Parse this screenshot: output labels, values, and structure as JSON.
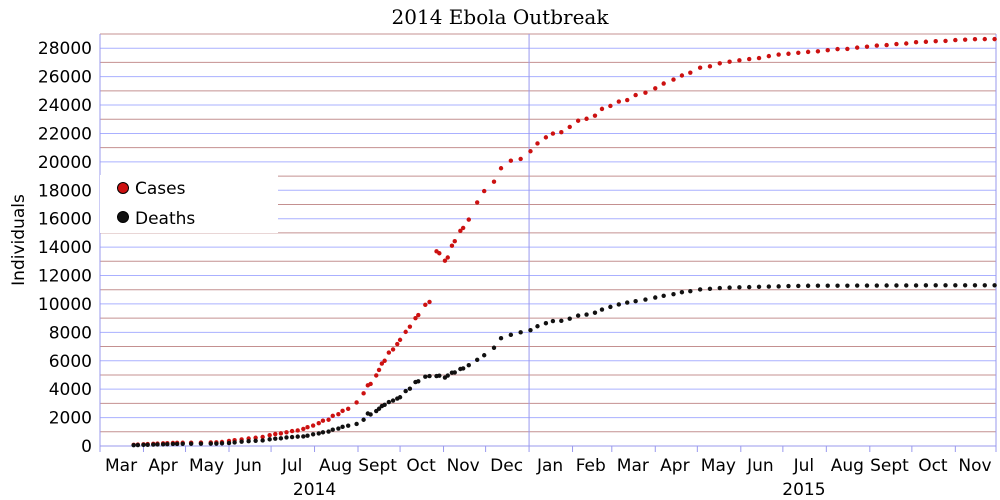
{
  "chart_data": {
    "type": "scatter",
    "title": "2014 Ebola Outbreak",
    "xlabel": "",
    "ylabel": "Individuals",
    "ylim": [
      0,
      29000
    ],
    "xlim": [
      "2014-03-01",
      "2015-11-30"
    ],
    "y_ticks": [
      0,
      2000,
      4000,
      6000,
      8000,
      10000,
      12000,
      14000,
      16000,
      18000,
      20000,
      22000,
      24000,
      26000,
      28000
    ],
    "x_month_labels": [
      {
        "label": "Mar",
        "date": "2014-03-16"
      },
      {
        "label": "Apr",
        "date": "2014-04-15"
      },
      {
        "label": "May",
        "date": "2014-05-16"
      },
      {
        "label": "Jun",
        "date": "2014-06-15"
      },
      {
        "label": "Jul",
        "date": "2014-07-16"
      },
      {
        "label": "Aug",
        "date": "2014-08-16"
      },
      {
        "label": "Sept",
        "date": "2014-09-15"
      },
      {
        "label": "Oct",
        "date": "2014-10-16"
      },
      {
        "label": "Nov",
        "date": "2014-11-15"
      },
      {
        "label": "Dec",
        "date": "2014-12-16"
      },
      {
        "label": "Jan",
        "date": "2015-01-16"
      },
      {
        "label": "Feb",
        "date": "2015-02-14"
      },
      {
        "label": "Mar",
        "date": "2015-03-16"
      },
      {
        "label": "Apr",
        "date": "2015-04-15"
      },
      {
        "label": "May",
        "date": "2015-05-16"
      },
      {
        "label": "Jun",
        "date": "2015-06-15"
      },
      {
        "label": "Jul",
        "date": "2015-07-16"
      },
      {
        "label": "Aug",
        "date": "2015-08-16"
      },
      {
        "label": "Sept",
        "date": "2015-09-15"
      },
      {
        "label": "Oct",
        "date": "2015-10-16"
      },
      {
        "label": "Nov",
        "date": "2015-11-15"
      }
    ],
    "x_month_boundaries": [
      "2014-03-01",
      "2014-04-01",
      "2014-05-01",
      "2014-06-01",
      "2014-07-01",
      "2014-08-01",
      "2014-09-01",
      "2014-10-01",
      "2014-11-01",
      "2014-12-01",
      "2015-01-01",
      "2015-02-01",
      "2015-03-01",
      "2015-04-01",
      "2015-05-01",
      "2015-06-01",
      "2015-07-01",
      "2015-08-01",
      "2015-09-01",
      "2015-10-01",
      "2015-11-01",
      "2015-11-30"
    ],
    "year_labels": [
      {
        "label": "2014",
        "date": "2014-08-01"
      },
      {
        "label": "2015",
        "date": "2015-07-16"
      }
    ],
    "year_divider": "2015-01-01",
    "grid": true,
    "legend_position": "left",
    "series": [
      {
        "name": "Cases",
        "color": "#cc1111",
        "points": [
          [
            "2014-03-25",
            86
          ],
          [
            "2014-03-28",
            103
          ],
          [
            "2014-04-01",
            122
          ],
          [
            "2014-04-04",
            137
          ],
          [
            "2014-04-08",
            157
          ],
          [
            "2014-04-11",
            167
          ],
          [
            "2014-04-15",
            186
          ],
          [
            "2014-04-18",
            200
          ],
          [
            "2014-04-22",
            213
          ],
          [
            "2014-04-25",
            222
          ],
          [
            "2014-04-29",
            229
          ],
          [
            "2014-05-05",
            235
          ],
          [
            "2014-05-12",
            240
          ],
          [
            "2014-05-19",
            248
          ],
          [
            "2014-05-23",
            258
          ],
          [
            "2014-05-27",
            281
          ],
          [
            "2014-06-01",
            354
          ],
          [
            "2014-06-05",
            412
          ],
          [
            "2014-06-10",
            461
          ],
          [
            "2014-06-15",
            528
          ],
          [
            "2014-06-20",
            581
          ],
          [
            "2014-06-25",
            635
          ],
          [
            "2014-06-30",
            759
          ],
          [
            "2014-07-04",
            844
          ],
          [
            "2014-07-08",
            888
          ],
          [
            "2014-07-12",
            964
          ],
          [
            "2014-07-16",
            1048
          ],
          [
            "2014-07-20",
            1093
          ],
          [
            "2014-07-24",
            1201
          ],
          [
            "2014-07-27",
            1323
          ],
          [
            "2014-07-31",
            1440
          ],
          [
            "2014-08-04",
            1603
          ],
          [
            "2014-08-07",
            1779
          ],
          [
            "2014-08-11",
            1848
          ],
          [
            "2014-08-14",
            2127
          ],
          [
            "2014-08-18",
            2240
          ],
          [
            "2014-08-21",
            2473
          ],
          [
            "2014-08-25",
            2615
          ],
          [
            "2014-08-31",
            3069
          ],
          [
            "2014-09-05",
            3707
          ],
          [
            "2014-09-08",
            4269
          ],
          [
            "2014-09-10",
            4366
          ],
          [
            "2014-09-14",
            4963
          ],
          [
            "2014-09-16",
            5357
          ],
          [
            "2014-09-18",
            5800
          ],
          [
            "2014-09-20",
            6000
          ],
          [
            "2014-09-23",
            6574
          ],
          [
            "2014-09-26",
            6800
          ],
          [
            "2014-09-29",
            7178
          ],
          [
            "2014-10-01",
            7470
          ],
          [
            "2014-10-05",
            8033
          ],
          [
            "2014-10-08",
            8399
          ],
          [
            "2014-10-12",
            9000
          ],
          [
            "2014-10-14",
            9216
          ],
          [
            "2014-10-19",
            9936
          ],
          [
            "2014-10-22",
            10141
          ],
          [
            "2014-10-27",
            13703
          ],
          [
            "2014-10-29",
            13567
          ],
          [
            "2014-11-02",
            13042
          ],
          [
            "2014-11-04",
            13268
          ],
          [
            "2014-11-07",
            14098
          ],
          [
            "2014-11-09",
            14413
          ],
          [
            "2014-11-13",
            15145
          ],
          [
            "2014-11-15",
            15351
          ],
          [
            "2014-11-19",
            15935
          ],
          [
            "2014-11-25",
            17145
          ],
          [
            "2014-11-30",
            17942
          ],
          [
            "2014-12-07",
            18603
          ],
          [
            "2014-12-12",
            19550
          ],
          [
            "2014-12-19",
            20081
          ],
          [
            "2014-12-26",
            20206
          ],
          [
            "2015-01-02",
            20747
          ],
          [
            "2015-01-07",
            21296
          ],
          [
            "2015-01-13",
            21724
          ],
          [
            "2015-01-18",
            21990
          ],
          [
            "2015-01-24",
            22092
          ],
          [
            "2015-01-30",
            22460
          ],
          [
            "2015-02-05",
            22894
          ],
          [
            "2015-02-11",
            23034
          ],
          [
            "2015-02-17",
            23253
          ],
          [
            "2015-02-22",
            23729
          ],
          [
            "2015-02-28",
            23934
          ],
          [
            "2015-03-06",
            24247
          ],
          [
            "2015-03-12",
            24350
          ],
          [
            "2015-03-18",
            24701
          ],
          [
            "2015-03-25",
            24872
          ],
          [
            "2015-04-01",
            25178
          ],
          [
            "2015-04-07",
            25515
          ],
          [
            "2015-04-14",
            25791
          ],
          [
            "2015-04-20",
            26079
          ],
          [
            "2015-04-26",
            26277
          ],
          [
            "2015-05-03",
            26628
          ],
          [
            "2015-05-10",
            26724
          ],
          [
            "2015-05-17",
            26933
          ],
          [
            "2015-05-24",
            27049
          ],
          [
            "2015-05-31",
            27145
          ],
          [
            "2015-06-07",
            27237
          ],
          [
            "2015-06-14",
            27305
          ],
          [
            "2015-06-21",
            27443
          ],
          [
            "2015-06-28",
            27550
          ],
          [
            "2015-07-05",
            27609
          ],
          [
            "2015-07-12",
            27678
          ],
          [
            "2015-07-19",
            27741
          ],
          [
            "2015-07-26",
            27784
          ],
          [
            "2015-08-02",
            27862
          ],
          [
            "2015-08-09",
            27935
          ],
          [
            "2015-08-16",
            27952
          ],
          [
            "2015-08-23",
            28041
          ],
          [
            "2015-08-30",
            28109
          ],
          [
            "2015-09-06",
            28183
          ],
          [
            "2015-09-13",
            28220
          ],
          [
            "2015-09-20",
            28295
          ],
          [
            "2015-09-27",
            28331
          ],
          [
            "2015-10-04",
            28421
          ],
          [
            "2015-10-11",
            28454
          ],
          [
            "2015-10-18",
            28497
          ],
          [
            "2015-10-25",
            28512
          ],
          [
            "2015-11-01",
            28571
          ],
          [
            "2015-11-08",
            28600
          ],
          [
            "2015-11-15",
            28634
          ],
          [
            "2015-11-22",
            28639
          ],
          [
            "2015-11-29",
            28640
          ]
        ]
      },
      {
        "name": "Deaths",
        "color": "#111111",
        "points": [
          [
            "2014-03-25",
            59
          ],
          [
            "2014-03-28",
            66
          ],
          [
            "2014-04-01",
            80
          ],
          [
            "2014-04-04",
            87
          ],
          [
            "2014-04-08",
            101
          ],
          [
            "2014-04-11",
            108
          ],
          [
            "2014-04-15",
            121
          ],
          [
            "2014-04-18",
            127
          ],
          [
            "2014-04-22",
            143
          ],
          [
            "2014-04-25",
            145
          ],
          [
            "2014-04-29",
            157
          ],
          [
            "2014-05-05",
            158
          ],
          [
            "2014-05-12",
            163
          ],
          [
            "2014-05-19",
            167
          ],
          [
            "2014-05-23",
            168
          ],
          [
            "2014-05-27",
            186
          ],
          [
            "2014-06-01",
            208
          ],
          [
            "2014-06-05",
            254
          ],
          [
            "2014-06-10",
            307
          ],
          [
            "2014-06-15",
            337
          ],
          [
            "2014-06-20",
            367
          ],
          [
            "2014-06-25",
            390
          ],
          [
            "2014-06-30",
            467
          ],
          [
            "2014-07-04",
            518
          ],
          [
            "2014-07-08",
            539
          ],
          [
            "2014-07-12",
            603
          ],
          [
            "2014-07-16",
            632
          ],
          [
            "2014-07-20",
            660
          ],
          [
            "2014-07-24",
            672
          ],
          [
            "2014-07-27",
            729
          ],
          [
            "2014-07-31",
            826
          ],
          [
            "2014-08-04",
            887
          ],
          [
            "2014-08-07",
            961
          ],
          [
            "2014-08-11",
            1013
          ],
          [
            "2014-08-14",
            1145
          ],
          [
            "2014-08-18",
            1229
          ],
          [
            "2014-08-21",
            1350
          ],
          [
            "2014-08-25",
            1427
          ],
          [
            "2014-08-31",
            1552
          ],
          [
            "2014-09-05",
            1848
          ],
          [
            "2014-09-08",
            2288
          ],
          [
            "2014-09-10",
            2218
          ],
          [
            "2014-09-14",
            2461
          ],
          [
            "2014-09-16",
            2622
          ],
          [
            "2014-09-18",
            2811
          ],
          [
            "2014-09-20",
            2900
          ],
          [
            "2014-09-23",
            3091
          ],
          [
            "2014-09-26",
            3200
          ],
          [
            "2014-09-29",
            3338
          ],
          [
            "2014-10-01",
            3431
          ],
          [
            "2014-10-05",
            3865
          ],
          [
            "2014-10-08",
            4033
          ],
          [
            "2014-10-12",
            4500
          ],
          [
            "2014-10-14",
            4555
          ],
          [
            "2014-10-19",
            4877
          ],
          [
            "2014-10-22",
            4922
          ],
          [
            "2014-10-27",
            4920
          ],
          [
            "2014-10-29",
            4951
          ],
          [
            "2014-11-02",
            4818
          ],
          [
            "2014-11-04",
            4960
          ],
          [
            "2014-11-07",
            5160
          ],
          [
            "2014-11-09",
            5177
          ],
          [
            "2014-11-13",
            5420
          ],
          [
            "2014-11-15",
            5459
          ],
          [
            "2014-11-19",
            5689
          ],
          [
            "2014-11-25",
            6070
          ],
          [
            "2014-11-30",
            6388
          ],
          [
            "2014-12-07",
            6915
          ],
          [
            "2014-12-12",
            7588
          ],
          [
            "2014-12-19",
            7826
          ],
          [
            "2014-12-26",
            8000
          ],
          [
            "2015-01-02",
            8153
          ],
          [
            "2015-01-07",
            8429
          ],
          [
            "2015-01-13",
            8641
          ],
          [
            "2015-01-18",
            8795
          ],
          [
            "2015-01-24",
            8810
          ],
          [
            "2015-01-30",
            8963
          ],
          [
            "2015-02-05",
            9177
          ],
          [
            "2015-02-11",
            9253
          ],
          [
            "2015-02-17",
            9380
          ],
          [
            "2015-02-22",
            9604
          ],
          [
            "2015-02-28",
            9792
          ],
          [
            "2015-03-06",
            9961
          ],
          [
            "2015-03-12",
            10096
          ],
          [
            "2015-03-18",
            10194
          ],
          [
            "2015-03-25",
            10311
          ],
          [
            "2015-04-01",
            10452
          ],
          [
            "2015-04-07",
            10572
          ],
          [
            "2015-04-14",
            10689
          ],
          [
            "2015-04-20",
            10823
          ],
          [
            "2015-04-26",
            10899
          ],
          [
            "2015-05-03",
            11020
          ],
          [
            "2015-05-10",
            11065
          ],
          [
            "2015-05-17",
            11120
          ],
          [
            "2015-05-24",
            11147
          ],
          [
            "2015-05-31",
            11169
          ],
          [
            "2015-06-07",
            11183
          ],
          [
            "2015-06-14",
            11207
          ],
          [
            "2015-06-21",
            11220
          ],
          [
            "2015-06-28",
            11235
          ],
          [
            "2015-07-05",
            11261
          ],
          [
            "2015-07-12",
            11268
          ],
          [
            "2015-07-19",
            11279
          ],
          [
            "2015-07-26",
            11284
          ],
          [
            "2015-08-02",
            11281
          ],
          [
            "2015-08-09",
            11283
          ],
          [
            "2015-08-16",
            11287
          ],
          [
            "2015-08-23",
            11290
          ],
          [
            "2015-08-30",
            11291
          ],
          [
            "2015-09-06",
            11296
          ],
          [
            "2015-09-13",
            11297
          ],
          [
            "2015-09-20",
            11298
          ],
          [
            "2015-09-27",
            11299
          ],
          [
            "2015-10-04",
            11300
          ],
          [
            "2015-10-11",
            11307
          ],
          [
            "2015-10-18",
            11311
          ],
          [
            "2015-10-25",
            11313
          ],
          [
            "2015-11-01",
            11314
          ],
          [
            "2015-11-08",
            11314
          ],
          [
            "2015-11-15",
            11314
          ],
          [
            "2015-11-22",
            11314
          ],
          [
            "2015-11-29",
            11314
          ]
        ]
      }
    ]
  }
}
